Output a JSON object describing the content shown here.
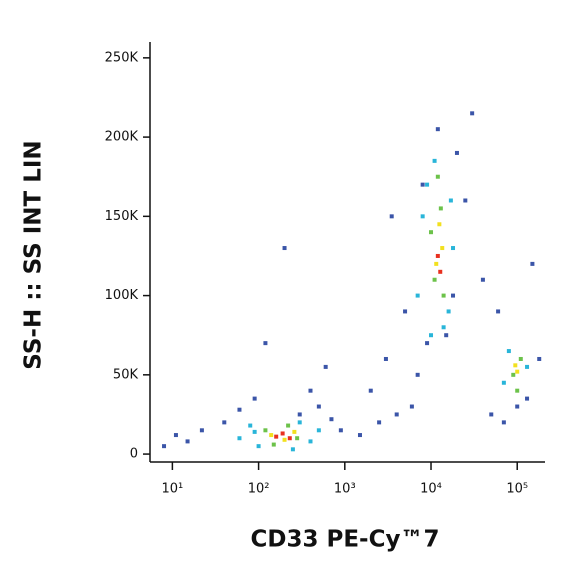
{
  "chart_data": {
    "type": "scatter",
    "xlabel": "CD33 PE-Cy™7",
    "ylabel": "SS-H :: SS INT LIN",
    "xscale": "log",
    "xlim": [
      5.5,
      210000
    ],
    "ylim": [
      -5000,
      260000
    ],
    "xticks": [
      {
        "value": 10,
        "label": "10¹"
      },
      {
        "value": 100,
        "label": "10²"
      },
      {
        "value": 1000,
        "label": "10³"
      },
      {
        "value": 10000,
        "label": "10⁴"
      },
      {
        "value": 100000,
        "label": "10⁵"
      }
    ],
    "yticks": [
      0,
      {
        "value": 50000,
        "label": "50K"
      },
      {
        "value": 100000,
        "label": "100K"
      },
      {
        "value": 150000,
        "label": "150K"
      },
      {
        "value": 200000,
        "label": "200K"
      },
      {
        "value": 250000,
        "label": "250K"
      }
    ],
    "series": [
      {
        "color": "#3b55a8",
        "x": [
          15,
          22,
          40,
          60,
          90,
          300,
          500,
          700,
          900,
          1500,
          2500,
          4000,
          6000,
          3000,
          5000,
          8000,
          20000,
          30000,
          25000,
          40000,
          60000,
          150000,
          180000,
          100000,
          70000,
          200,
          120,
          600,
          2000,
          12000,
          9000,
          15000,
          50000,
          8,
          11,
          400,
          3500,
          18000,
          7000,
          130000
        ],
        "values": [
          8000,
          15000,
          20000,
          28000,
          35000,
          25000,
          30000,
          22000,
          15000,
          12000,
          20000,
          25000,
          30000,
          60000,
          90000,
          170000,
          190000,
          215000,
          160000,
          110000,
          90000,
          120000,
          60000,
          30000,
          20000,
          130000,
          70000,
          55000,
          40000,
          205000,
          70000,
          75000,
          25000,
          5000,
          12000,
          40000,
          150000,
          100000,
          50000,
          35000
        ]
      },
      {
        "color": "#29b5d9",
        "x": [
          60,
          80,
          100,
          300,
          400,
          500,
          7000,
          8000,
          9000,
          16000,
          17000,
          18000,
          70000,
          80000,
          130000,
          10000,
          11000,
          14000,
          250,
          90
        ],
        "values": [
          10000,
          18000,
          5000,
          20000,
          8000,
          15000,
          100000,
          150000,
          170000,
          90000,
          160000,
          130000,
          45000,
          65000,
          55000,
          75000,
          185000,
          80000,
          3000,
          14000
        ]
      },
      {
        "color": "#6cc24a",
        "x": [
          120,
          150,
          220,
          280,
          10000,
          11000,
          13000,
          14000,
          12000,
          90000,
          110000,
          100000
        ],
        "values": [
          15000,
          6000,
          18000,
          10000,
          140000,
          110000,
          155000,
          100000,
          175000,
          50000,
          60000,
          40000
        ]
      },
      {
        "color": "#f2e01f",
        "x": [
          140,
          200,
          260,
          11500,
          12500,
          13500,
          100000,
          95000
        ],
        "values": [
          12000,
          9000,
          14000,
          120000,
          145000,
          130000,
          52000,
          56000
        ]
      },
      {
        "color": "#e8301f",
        "x": [
          160,
          190,
          230,
          12000,
          12800
        ],
        "values": [
          11000,
          13000,
          10000,
          125000,
          115000
        ]
      }
    ]
  }
}
